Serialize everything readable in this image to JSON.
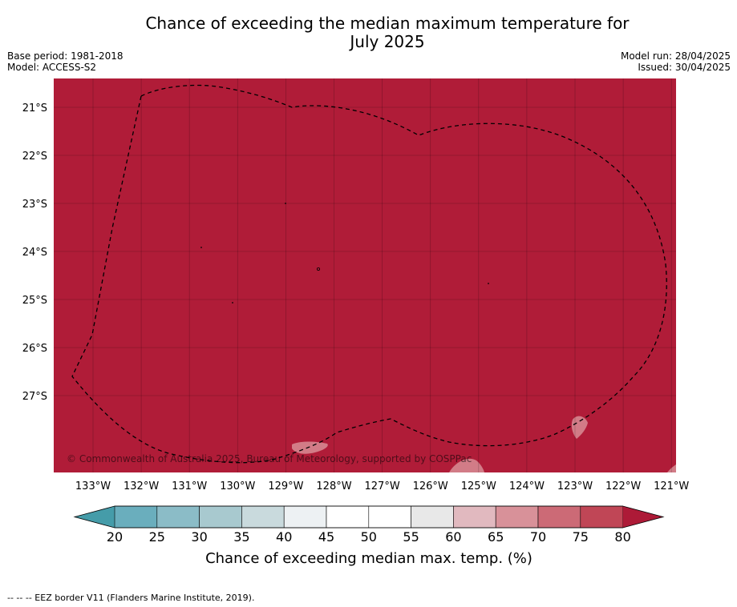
{
  "header": {
    "title_line1": "Chance of exceeding the median maximum temperature for",
    "title_line2": "July 2025",
    "base_period": "Base period: 1981-2018",
    "model": "Model: ACCESS-S2",
    "model_run": "Model run: 28/04/2025",
    "issued": "Issued: 30/04/2025"
  },
  "map": {
    "fill_color": "#b01c38",
    "copyright": "© Commonwealth of Australia 2025, Bureau of Meteorology, supported by COSPPac",
    "lat_labels": [
      "21°S",
      "22°S",
      "23°S",
      "24°S",
      "25°S",
      "26°S",
      "27°S"
    ],
    "lon_labels": [
      "133°W",
      "132°W",
      "131°W",
      "130°W",
      "129°W",
      "128°W",
      "127°W",
      "126°W",
      "125°W",
      "124°W",
      "123°W",
      "122°W",
      "121°W"
    ]
  },
  "colorbar": {
    "label": "Chance of exceeding median max. temp. (%)",
    "ticks": [
      "20",
      "25",
      "30",
      "35",
      "40",
      "45",
      "50",
      "55",
      "60",
      "65",
      "70",
      "75",
      "80"
    ],
    "colors": [
      "#459ca9",
      "#6aaebd",
      "#8bbcc7",
      "#a8c9cf",
      "#c9dadd",
      "#edf1f3",
      "#ffffff",
      "#ffffff",
      "#e8e8e8",
      "#e1b9bf",
      "#d89199",
      "#cc6a76",
      "#c04656",
      "#ad1a37"
    ]
  },
  "footnote": "--  --  -- EEZ border V11 (Flanders Marine Institute, 2019)."
}
